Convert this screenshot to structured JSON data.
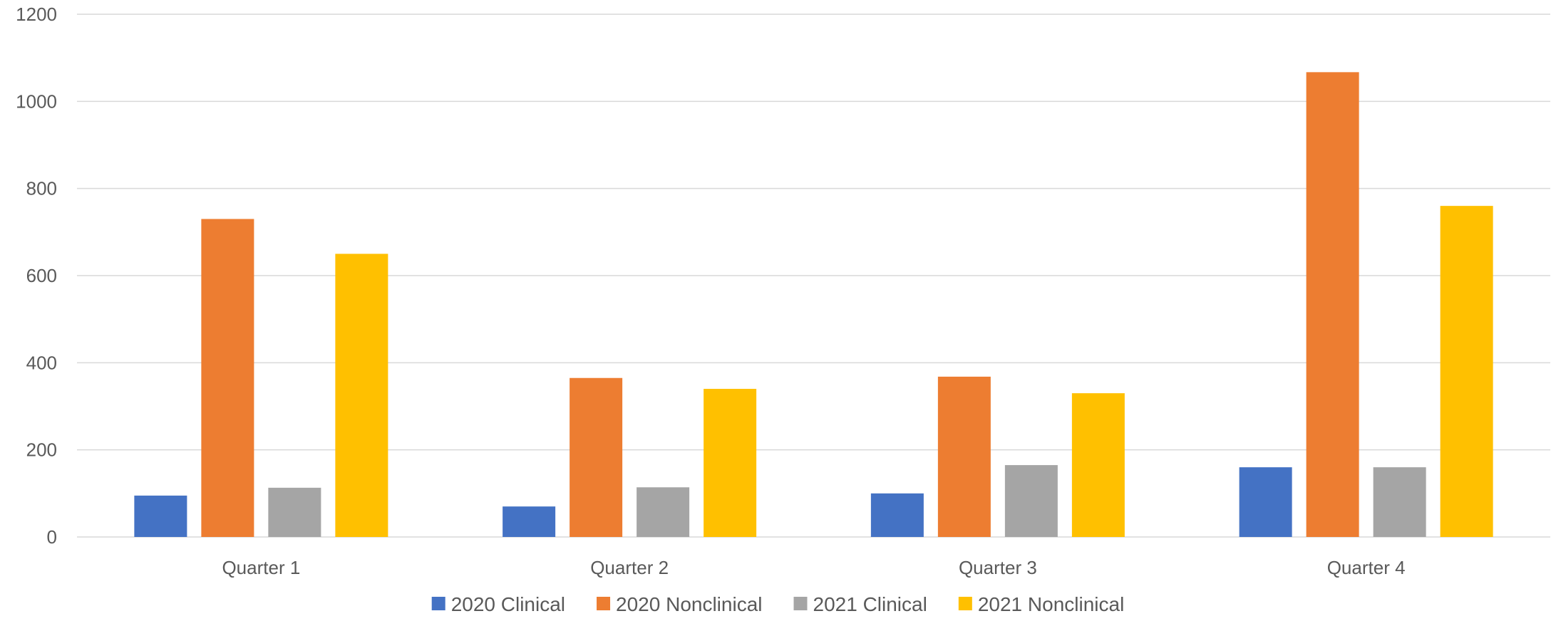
{
  "chart_data": {
    "type": "bar",
    "title": "",
    "xlabel": "",
    "ylabel": "",
    "categories": [
      "Quarter 1",
      "Quarter 2",
      "Quarter 3",
      "Quarter 4"
    ],
    "ylim": [
      0,
      1200
    ],
    "yticks": [
      0,
      200,
      400,
      600,
      800,
      1000,
      1200
    ],
    "grid": true,
    "legend_position": "bottom",
    "series": [
      {
        "name": "2020 Clinical",
        "color": "#4472C4",
        "values": [
          95,
          70,
          100,
          160
        ]
      },
      {
        "name": "2020 Nonclinical",
        "color": "#ED7D31",
        "values": [
          730,
          365,
          368,
          1067
        ]
      },
      {
        "name": "2021 Clinical",
        "color": "#A5A5A5",
        "values": [
          113,
          114,
          165,
          160
        ]
      },
      {
        "name": "2021 Nonclinical",
        "color": "#FFC000",
        "values": [
          650,
          340,
          330,
          760
        ]
      }
    ]
  }
}
